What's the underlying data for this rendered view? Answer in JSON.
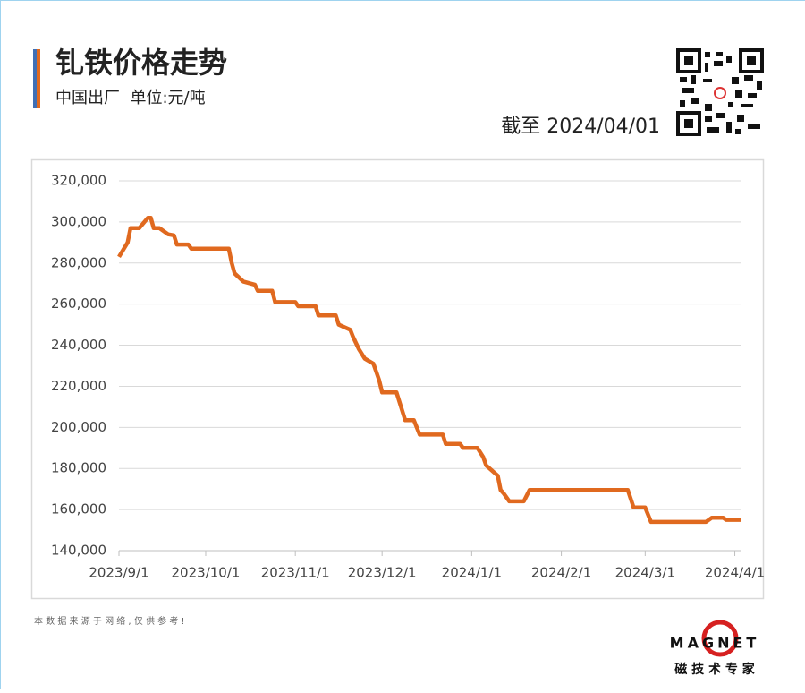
{
  "chart_data": {
    "type": "line",
    "title": "钆铁价格走势",
    "subtitle": "中国出厂  单位:元/吨",
    "date_note": "截至 2024/04/01",
    "source_note": "本 数 据 来 源 于 网 络 , 仅 供 参 考 !",
    "brand": "MAGNET",
    "brand_tagline": "磁 技 术 专 家",
    "color": "#e0691f",
    "x": [
      "2023/9/1",
      "2023/9/4",
      "2023/9/5",
      "2023/9/8",
      "2023/9/11",
      "2023/9/12",
      "2023/9/13",
      "2023/9/15",
      "2023/9/18",
      "2023/9/20",
      "2023/9/21",
      "2023/9/25",
      "2023/9/26",
      "2023/10/9",
      "2023/10/10",
      "2023/10/11",
      "2023/10/14",
      "2023/10/18",
      "2023/10/19",
      "2023/10/24",
      "2023/10/25",
      "2023/11/1",
      "2023/11/2",
      "2023/11/8",
      "2023/11/9",
      "2023/11/15",
      "2023/11/16",
      "2023/11/20",
      "2023/11/21",
      "2023/11/23",
      "2023/11/25",
      "2023/11/28",
      "2023/11/30",
      "2023/12/1",
      "2023/12/6",
      "2023/12/9",
      "2023/12/12",
      "2023/12/14",
      "2023/12/22",
      "2023/12/23",
      "2023/12/28",
      "2023/12/29",
      "2024/1/3",
      "2024/1/5",
      "2024/1/6",
      "2024/1/10",
      "2024/1/11",
      "2024/1/12",
      "2024/1/14",
      "2024/1/19",
      "2024/1/21",
      "2024/2/24",
      "2024/2/26",
      "2024/3/1",
      "2024/3/3",
      "2024/3/22",
      "2024/3/24",
      "2024/3/28",
      "2024/3/29",
      "2024/4/3"
    ],
    "values": [
      283000,
      290000,
      297000,
      297000,
      302000,
      302000,
      297000,
      297000,
      294000,
      293500,
      289000,
      289000,
      287000,
      287000,
      280000,
      275000,
      271000,
      269500,
      266500,
      266500,
      261000,
      261000,
      259000,
      259000,
      254500,
      254500,
      250000,
      247500,
      244000,
      238000,
      233500,
      231000,
      223000,
      217000,
      217000,
      203500,
      203500,
      196500,
      196500,
      192000,
      192000,
      190000,
      190000,
      185500,
      181500,
      176500,
      169500,
      168000,
      164000,
      164000,
      169500,
      169500,
      161000,
      161000,
      154000,
      154000,
      156000,
      156000,
      155000,
      155000
    ],
    "xlim": [
      "2023/9/1",
      "2024/4/3"
    ],
    "xticks": [
      "2023/9/1",
      "2023/10/1",
      "2023/11/1",
      "2023/12/1",
      "2024/1/1",
      "2024/2/1",
      "2024/3/1",
      "2024/4/1"
    ],
    "ylim": [
      140000,
      320000
    ],
    "yticks": [
      {
        "value": 140000,
        "label": "140,000"
      },
      {
        "value": 160000,
        "label": "160,000"
      },
      {
        "value": 180000,
        "label": "180,000"
      },
      {
        "value": 200000,
        "label": "200,000"
      },
      {
        "value": 220000,
        "label": "220,000"
      },
      {
        "value": 240000,
        "label": "240,000"
      },
      {
        "value": 260000,
        "label": "260,000"
      },
      {
        "value": 280000,
        "label": "280,000"
      },
      {
        "value": 300000,
        "label": "300,000"
      },
      {
        "value": 320000,
        "label": "320,000"
      }
    ],
    "grid": true
  }
}
